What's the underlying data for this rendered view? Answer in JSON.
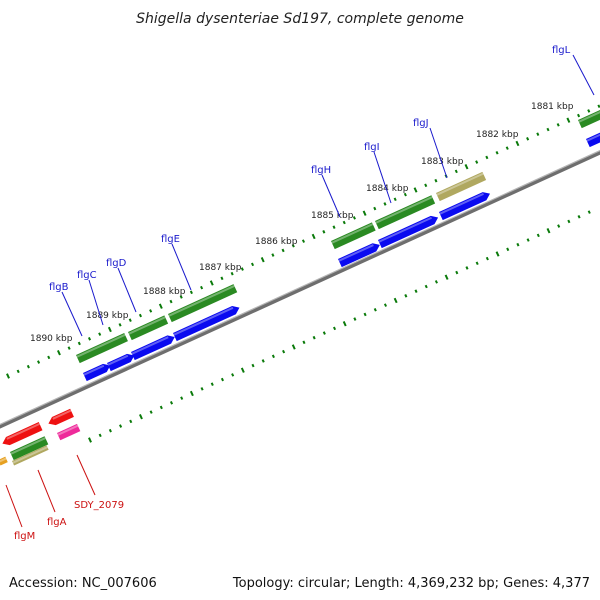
{
  "title": "Shigella dysenteriae Sd197, complete genome",
  "footer": {
    "accession": "Accession: NC_007606",
    "summary": "Topology: circular; Length: 4,369,232 bp; Genes: 4,377"
  },
  "colors": {
    "backbone": "#8a8a8a",
    "tick_green": "#0a7a0a",
    "cds_green": "#2a8a22",
    "cds_blue": "#0a0af0",
    "cds_red": "#ee1111",
    "cds_magenta": "#ee2a9a",
    "cds_olive": "#b0a860",
    "label_blue": "#1a1acc",
    "label_red": "#cc1111"
  },
  "ticks": [
    {
      "label": "1881 kbp"
    },
    {
      "label": "1882 kbp"
    },
    {
      "label": "1883 kbp"
    },
    {
      "label": "1884 kbp"
    },
    {
      "label": "1885 kbp"
    },
    {
      "label": "1886 kbp"
    },
    {
      "label": "1887 kbp"
    },
    {
      "label": "1888 kbp"
    },
    {
      "label": "1889 kbp"
    },
    {
      "label": "1890 kbp"
    }
  ],
  "genes_top": [
    {
      "label": "flgL",
      "color": "label_blue"
    },
    {
      "label": "flgJ",
      "color": "label_blue"
    },
    {
      "label": "flgI",
      "color": "label_blue"
    },
    {
      "label": "flgH",
      "color": "label_blue"
    },
    {
      "label": "flgE",
      "color": "label_blue"
    },
    {
      "label": "flgD",
      "color": "label_blue"
    },
    {
      "label": "flgC",
      "color": "label_blue"
    },
    {
      "label": "flgB",
      "color": "label_blue"
    }
  ],
  "genes_bottom": [
    {
      "label": "SDY_2079",
      "color": "label_red"
    },
    {
      "label": "flgA",
      "color": "label_red"
    },
    {
      "label": "flgM",
      "color": "label_red"
    }
  ]
}
